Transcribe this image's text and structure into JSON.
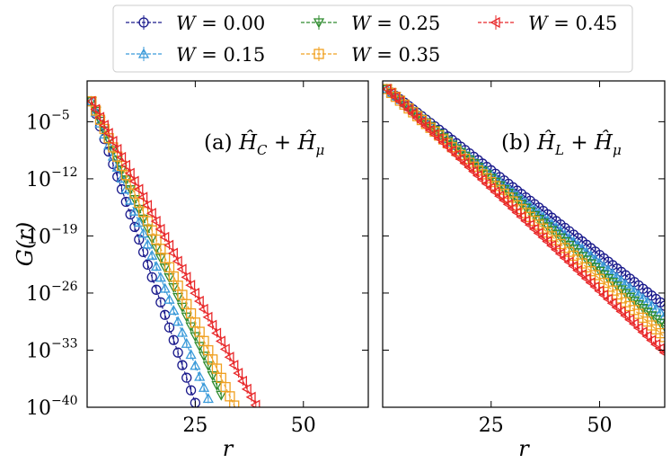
{
  "chart_data": [
    {
      "type": "line",
      "panel": "a",
      "annotation": "(a) Ĥ_C + Ĥ_μ",
      "annotation_prefix": "(a)",
      "annotation_term1": "Ĥ",
      "annotation_sub1": "C",
      "annotation_term2": "Ĥ",
      "annotation_sub2": "μ",
      "xlabel": "r",
      "ylabel": "G(r)",
      "yscale": "log",
      "xlim": [
        0,
        65
      ],
      "ylim_exp": [
        -40,
        0
      ],
      "xticks": [
        25,
        50
      ],
      "yticks_exp": [
        -5,
        -12,
        -19,
        -26,
        -33,
        -40
      ],
      "series": [
        {
          "name": "W = 0.00",
          "W": 0.0,
          "color": "#1a1a8c",
          "marker": "circle",
          "log10_at_r1": -2.5,
          "slope": -1.54,
          "r_max": 25
        },
        {
          "name": "W = 0.15",
          "W": 0.15,
          "color": "#3a9ad9",
          "marker": "triangle-up",
          "log10_at_r1": -2.5,
          "slope": -1.35,
          "r_max": 28
        },
        {
          "name": "W = 0.25",
          "W": 0.25,
          "color": "#2e8b2e",
          "marker": "triangle-down",
          "log10_at_r1": -2.5,
          "slope": -1.2,
          "r_max": 31
        },
        {
          "name": "W = 0.35",
          "W": 0.35,
          "color": "#f0a020",
          "marker": "square",
          "log10_at_r1": -2.5,
          "slope": -1.13,
          "r_max": 35
        },
        {
          "name": "W = 0.45",
          "W": 0.45,
          "color": "#e8282a",
          "marker": "triangle-left",
          "log10_at_r1": -2.5,
          "slope": -0.98,
          "r_max": 39
        }
      ]
    },
    {
      "type": "line",
      "panel": "b",
      "annotation": "(b) Ĥ_L + Ĥ_μ",
      "annotation_prefix": "(b)",
      "annotation_term1": "Ĥ",
      "annotation_sub1": "L",
      "annotation_term2": "Ĥ",
      "annotation_sub2": "μ",
      "xlabel": "r",
      "yscale": "log",
      "xlim": [
        0,
        65
      ],
      "ylim_exp": [
        -40,
        0
      ],
      "xticks": [
        25,
        50
      ],
      "series": [
        {
          "name": "W = 0.00",
          "W": 0.0,
          "color": "#1a1a8c",
          "marker": "circle",
          "log10_at_r1": -1.0,
          "slope": -0.415,
          "r_max": 65
        },
        {
          "name": "W = 0.15",
          "W": 0.15,
          "color": "#3a9ad9",
          "marker": "triangle-up",
          "log10_at_r1": -1.0,
          "slope": -0.435,
          "r_max": 65
        },
        {
          "name": "W = 0.25",
          "W": 0.25,
          "color": "#2e8b2e",
          "marker": "triangle-down",
          "log10_at_r1": -1.0,
          "slope": -0.455,
          "r_max": 65
        },
        {
          "name": "W = 0.35",
          "W": 0.35,
          "color": "#f0a020",
          "marker": "square",
          "log10_at_r1": -1.0,
          "slope": -0.475,
          "r_max": 65
        },
        {
          "name": "W = 0.45",
          "W": 0.45,
          "color": "#e8282a",
          "marker": "triangle-left",
          "log10_at_r1": -1.0,
          "slope": -0.505,
          "r_max": 65
        }
      ]
    }
  ],
  "legend": {
    "entries": [
      {
        "label_var": "W",
        "label_rest": " = 0.00"
      },
      {
        "label_var": "W",
        "label_rest": " = 0.15"
      },
      {
        "label_var": "W",
        "label_rest": " = 0.25"
      },
      {
        "label_var": "W",
        "label_rest": " = 0.35"
      },
      {
        "label_var": "W",
        "label_rest": " = 0.45"
      }
    ]
  },
  "y_tick_base": "10",
  "x_tick_labels": [
    "25",
    "50"
  ],
  "y_tick_exponent_labels": [
    "−5",
    "−12",
    "−19",
    "−26",
    "−33",
    "−40"
  ]
}
